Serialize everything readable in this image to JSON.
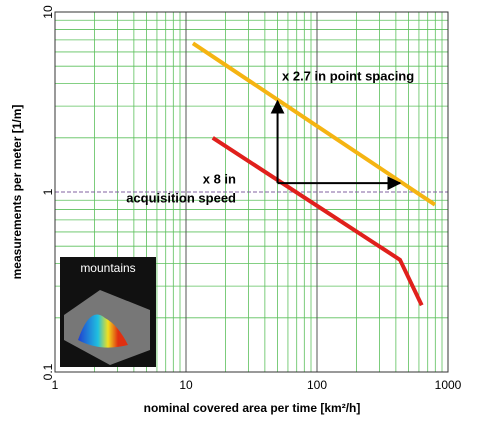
{
  "chart_data": {
    "type": "line",
    "xlabel": "nominal covered area per time [km²/h]",
    "ylabel": "measurements per meter [1/m]",
    "xlog": true,
    "ylog": true,
    "grid": true,
    "xlim": [
      1,
      1000
    ],
    "ylim": [
      0.1,
      10
    ],
    "xticks": [
      1,
      10,
      100,
      1000
    ],
    "yticks": [
      0.1,
      1,
      10
    ],
    "x_minor_ticks": [
      2,
      3,
      4,
      5,
      6,
      7,
      8,
      9,
      20,
      30,
      40,
      50,
      60,
      70,
      80,
      90,
      200,
      300,
      400,
      500,
      600,
      700,
      800,
      900
    ],
    "y_minor_ticks": [
      0.2,
      0.3,
      0.4,
      0.5,
      0.6,
      0.7,
      0.8,
      0.9,
      2,
      3,
      4,
      5,
      6,
      7,
      8,
      9
    ],
    "series": [
      {
        "color": "#f5b412",
        "x": [
          11.3,
          795
        ],
        "values": [
          6.7,
          0.85
        ]
      },
      {
        "color": "#e0201c",
        "x": [
          16,
          430,
          630
        ],
        "values": [
          2.0,
          0.42,
          0.235
        ]
      }
    ],
    "arrows": [
      {
        "x": [
          50,
          50
        ],
        "values": [
          1.12,
          3.2
        ]
      },
      {
        "x": [
          50,
          430
        ],
        "values": [
          1.12,
          1.12
        ]
      }
    ],
    "annotations": [
      "x 2.7 in point spacing",
      "x 8 in",
      "acquisition speed"
    ],
    "inset_label": "mountains"
  }
}
